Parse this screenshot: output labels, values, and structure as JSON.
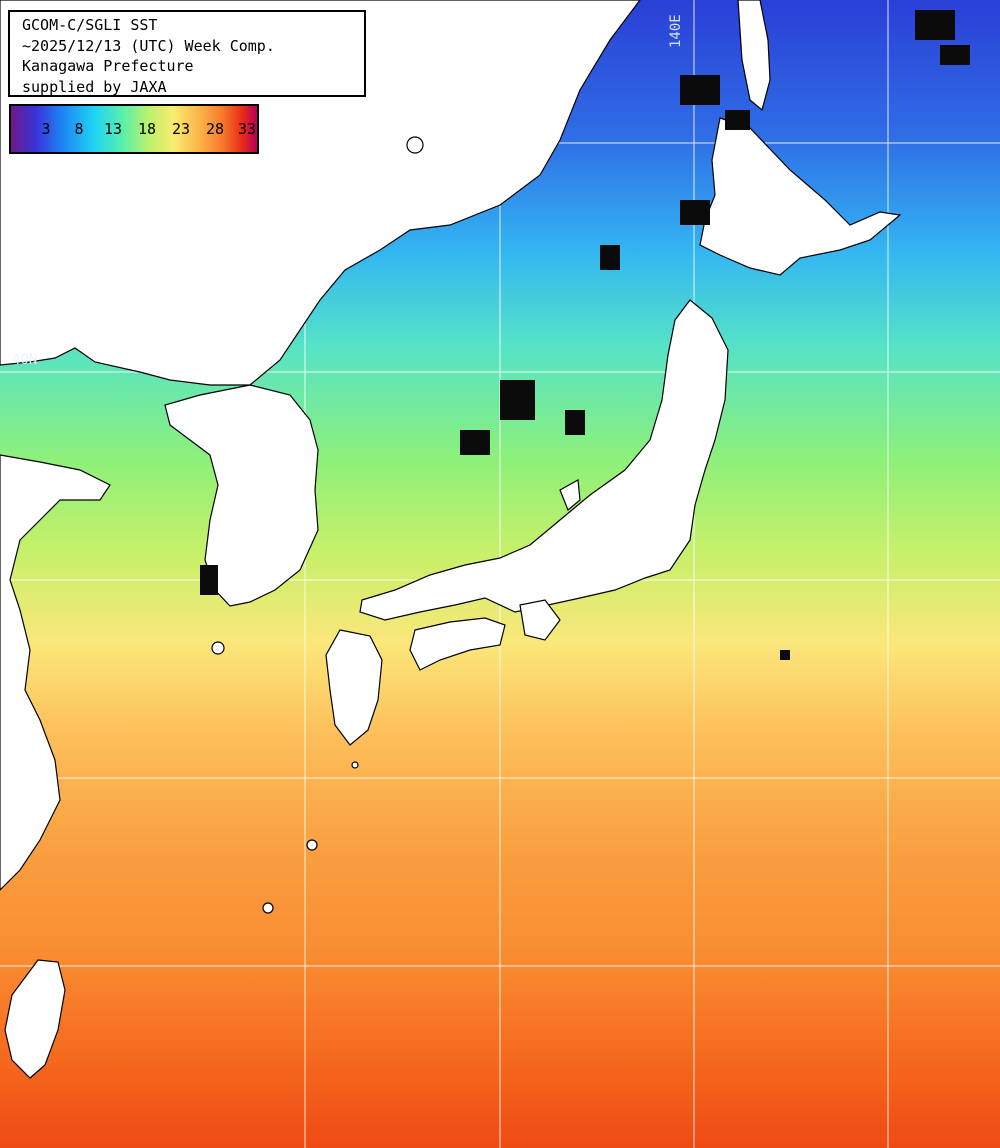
{
  "info": {
    "line1": "GCOM-C/SGLI SST",
    "line2": "~2025/12/13 (UTC) Week Comp.",
    "line3": "Kanagawa Prefecture",
    "line4": "supplied by JAXA"
  },
  "legend": {
    "ticks": [
      "3",
      "8",
      "13",
      "18",
      "23",
      "28",
      "33"
    ]
  },
  "grid_labels": {
    "longitude": "140E",
    "latitude": "40N"
  },
  "colors": {
    "land": "#ffffff",
    "coast": "#000000",
    "cloud": "#0b0b0b",
    "grid": "#ffffff"
  }
}
